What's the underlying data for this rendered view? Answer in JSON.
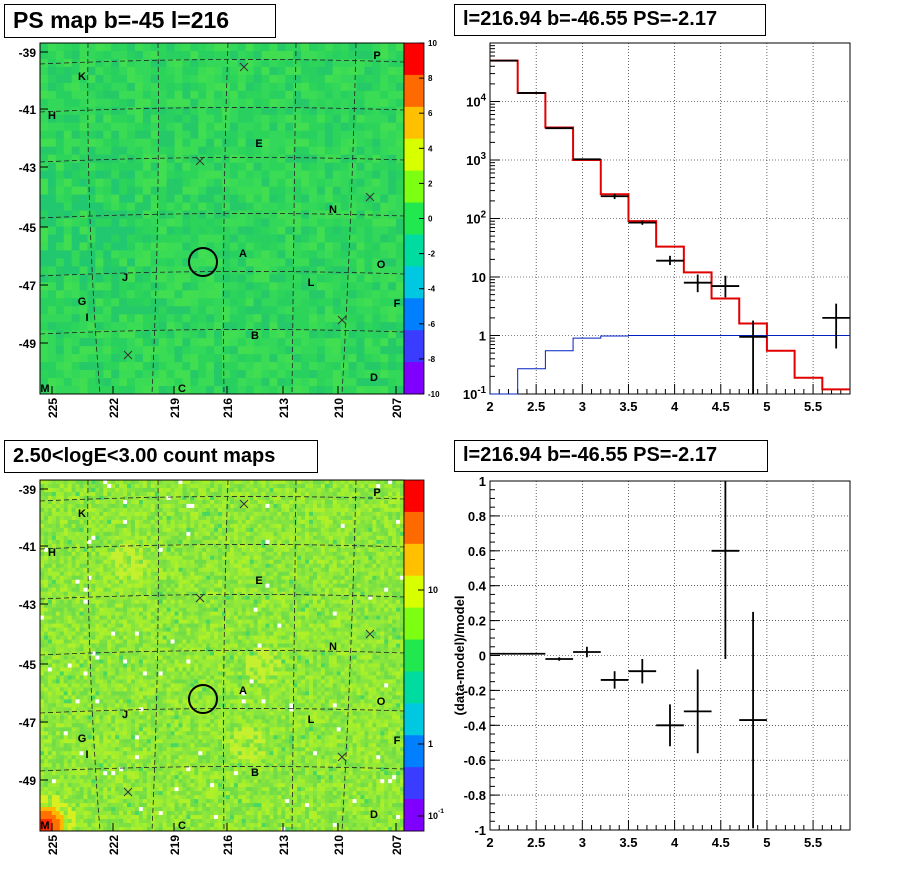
{
  "chart_data": [
    {
      "type": "heatmap",
      "title": "PS map b=-45 l=216",
      "x_ticks": [
        "225",
        "222",
        "219",
        "216",
        "213",
        "210",
        "207"
      ],
      "y_ticks": [
        "-39",
        "-41",
        "-43",
        "-45",
        "-47",
        "-49"
      ],
      "colorbar_ticks": [
        "10",
        "8",
        "6",
        "4",
        "2",
        "0",
        "-2",
        "-4",
        "-6",
        "-8",
        "-10"
      ],
      "colorbar_colors": [
        "#ff0000",
        "#ff6a00",
        "#ffc000",
        "#d8ff00",
        "#7cff10",
        "#22e850",
        "#00dca0",
        "#00c8e0",
        "#0080ff",
        "#3a3cff",
        "#8000ff"
      ],
      "background_color": "#2dd45a",
      "region_labels": [
        "K",
        "P",
        "H",
        "E",
        "N",
        "A",
        "O",
        "J",
        "L",
        "G",
        "F",
        "I",
        "B",
        "M",
        "C",
        "D"
      ]
    },
    {
      "type": "line",
      "title": "l=216.94 b=-46.55 PS=-2.17",
      "xlim": [
        2.0,
        5.9
      ],
      "ylim": [
        0.1,
        100000
      ],
      "y_scale": "log",
      "x_ticks": [
        "2",
        "2.5",
        "3",
        "3.5",
        "4",
        "4.5",
        "5",
        "5.5"
      ],
      "y_ticks": [
        "10^{-1}",
        "1",
        "10",
        "10^{2}",
        "10^{3}",
        "10^{4}"
      ],
      "series": [
        {
          "color": "#e00000",
          "type": "step",
          "edges": [
            2.0,
            2.3,
            2.6,
            2.9,
            3.2,
            3.5,
            3.8,
            4.1,
            4.4,
            4.7,
            5.0,
            5.3,
            5.6,
            5.9
          ],
          "values": [
            50000,
            14000,
            3600,
            1000,
            260,
            90,
            33,
            12,
            4.3,
            1.6,
            0.55,
            0.19,
            0.12
          ]
        },
        {
          "color": "#0020c0",
          "type": "step",
          "edges": [
            2.0,
            2.3,
            2.6,
            2.9,
            3.2,
            3.5,
            3.8,
            4.1,
            4.4,
            4.7,
            5.0,
            5.3,
            5.6,
            5.9
          ],
          "values": [
            0.06,
            0.27,
            0.55,
            0.9,
            0.98,
            1.0,
            1.0,
            1.0,
            1.0,
            1.0,
            1.0,
            1.0,
            1.0
          ]
        },
        {
          "color": "#000000",
          "type": "points",
          "x": [
            2.15,
            2.45,
            2.75,
            3.05,
            3.35,
            3.65,
            3.95,
            4.25,
            4.55,
            4.85,
            5.75
          ],
          "y": [
            50000,
            14000,
            3500,
            1030,
            240,
            85,
            19,
            8,
            7,
            0.95,
            2.0
          ],
          "xerr": 0.15,
          "ylow": [
            null,
            null,
            null,
            null,
            215,
            78,
            16,
            5.5,
            4.5,
            0.1,
            0.6
          ],
          "yhigh": [
            null,
            null,
            null,
            null,
            265,
            92,
            23,
            11,
            10.5,
            1.8,
            3.5
          ]
        }
      ]
    },
    {
      "type": "heatmap",
      "title": "2.50<logE<3.00 count maps",
      "x_ticks": [
        "225",
        "222",
        "219",
        "216",
        "213",
        "210",
        "207"
      ],
      "y_ticks": [
        "-39",
        "-41",
        "-43",
        "-45",
        "-47",
        "-49"
      ],
      "colorbar_ticks": [
        "10",
        "1",
        "10^{-1}"
      ],
      "colorbar_colors": [
        "#ff0000",
        "#ff6a00",
        "#ffc000",
        "#d8ff00",
        "#7cff10",
        "#22e850",
        "#00dca0",
        "#00c8e0",
        "#0080ff",
        "#3a3cff",
        "#8000ff"
      ],
      "background_color": "#8fe83a",
      "region_labels": [
        "K",
        "P",
        "H",
        "E",
        "N",
        "A",
        "O",
        "J",
        "L",
        "G",
        "F",
        "I",
        "B",
        "M",
        "C",
        "D"
      ]
    },
    {
      "type": "scatter",
      "title": "l=216.94 b=-46.55 PS=-2.17",
      "ylabel": "(data-model)/model",
      "xlim": [
        2.0,
        5.9
      ],
      "ylim": [
        -1,
        1
      ],
      "x_ticks": [
        "2",
        "2.5",
        "3",
        "3.5",
        "4",
        "4.5",
        "5",
        "5.5"
      ],
      "y_ticks": [
        "1",
        "0.8",
        "0.6",
        "0.4",
        "0.2",
        "0",
        "-0.2",
        "-0.4",
        "-0.6",
        "-0.8",
        "-1"
      ],
      "points": {
        "x": [
          2.15,
          2.45,
          2.75,
          3.05,
          3.35,
          3.65,
          3.95,
          4.25,
          4.55,
          4.85
        ],
        "y": [
          0.01,
          0.01,
          -0.02,
          0.02,
          -0.14,
          -0.09,
          -0.4,
          -0.32,
          0.6,
          -0.37
        ],
        "xerr": 0.15,
        "yerr": [
          0.005,
          0.005,
          0.01,
          0.03,
          0.05,
          0.07,
          0.12,
          0.24,
          0.62,
          0.62
        ]
      }
    }
  ]
}
